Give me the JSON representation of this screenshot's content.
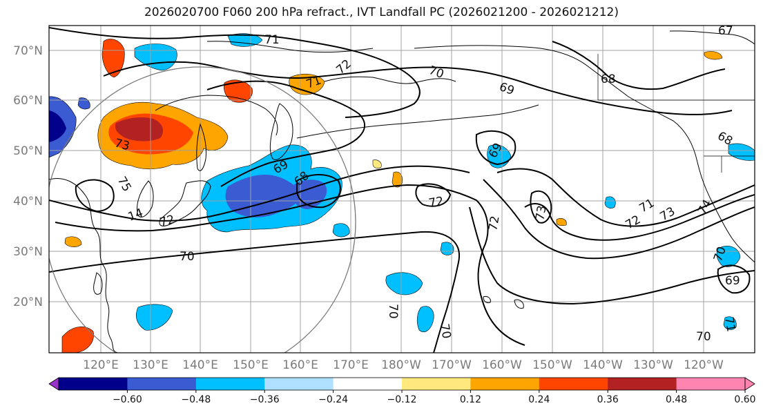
{
  "title": "2026020700 F060 200 hPa refract., IVT Landfall PC (2026021200 - 2026021212)",
  "lat_labels": [
    "70°N",
    "60°N",
    "50°N",
    "40°N",
    "30°N",
    "20°N"
  ],
  "lon_labels": [
    "120°E",
    "130°E",
    "140°E",
    "150°E",
    "160°E",
    "170°E",
    "180°W",
    "170°W",
    "160°W",
    "150°W",
    "140°W",
    "130°W",
    "120°W"
  ],
  "contour_labels": [
    "71",
    "72",
    "71",
    "70",
    "69",
    "68",
    "67",
    "73",
    "75",
    "69",
    "68",
    "69",
    "72",
    "73",
    "72",
    "72",
    "71",
    "73",
    "74",
    "70",
    "72",
    "70",
    "70",
    "70",
    "69",
    "71",
    "70",
    "68",
    "14"
  ],
  "colorbar": {
    "colors": [
      "#9933cc",
      "#00008b",
      "#3a5bd1",
      "#00bfff",
      "#b0e0ff",
      "#ffffff",
      "#ffe97f",
      "#ffa500",
      "#ff4500",
      "#b22222",
      "#ff85b0",
      "#ff85b0"
    ],
    "tick_labels": [
      "−0.60",
      "−0.48",
      "−0.36",
      "−0.24",
      "−0.12",
      "0.12",
      "0.24",
      "0.36",
      "0.48",
      "0.60"
    ]
  },
  "colors": {
    "grid": "#a0a0a0",
    "contour": "#000000",
    "coast": "#000000"
  }
}
